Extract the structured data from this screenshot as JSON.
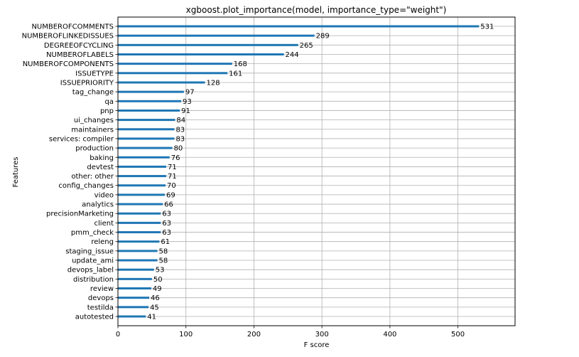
{
  "chart_data": {
    "type": "bar",
    "orientation": "horizontal",
    "title": "xgboost.plot_importance(model, importance_type=\"weight\")",
    "xlabel": "F score",
    "ylabel": "Features",
    "xlim": [
      0,
      584
    ],
    "xticks": [
      0,
      100,
      200,
      300,
      400,
      500
    ],
    "grid": true,
    "bar_color": "#1f77b4",
    "categories": [
      "NUMBEROFCOMMENTS",
      "NUMBEROFLINKEDISSUES",
      "DEGREEOFCYCLING",
      "NUMBEROFLABELS",
      "NUMBEROFCOMPONENTS",
      "ISSUETYPE",
      "ISSUEPRIORITY",
      "tag_change",
      "qa",
      "pnp",
      "ui_changes",
      "maintainers",
      "services: compiler",
      "production",
      "baking",
      "devtest",
      "other: other",
      "config_changes",
      "video",
      "analytics",
      "precisionMarketing",
      "client",
      "pmm_check",
      "releng",
      "staging_issue",
      "update_ami",
      "devops_label",
      "distribution",
      "review",
      "devops",
      "testilda",
      "autotested"
    ],
    "values": [
      531,
      289,
      265,
      244,
      168,
      161,
      128,
      97,
      93,
      91,
      84,
      83,
      83,
      80,
      76,
      71,
      71,
      70,
      69,
      66,
      63,
      63,
      63,
      61,
      58,
      58,
      53,
      50,
      49,
      46,
      45,
      41
    ]
  }
}
